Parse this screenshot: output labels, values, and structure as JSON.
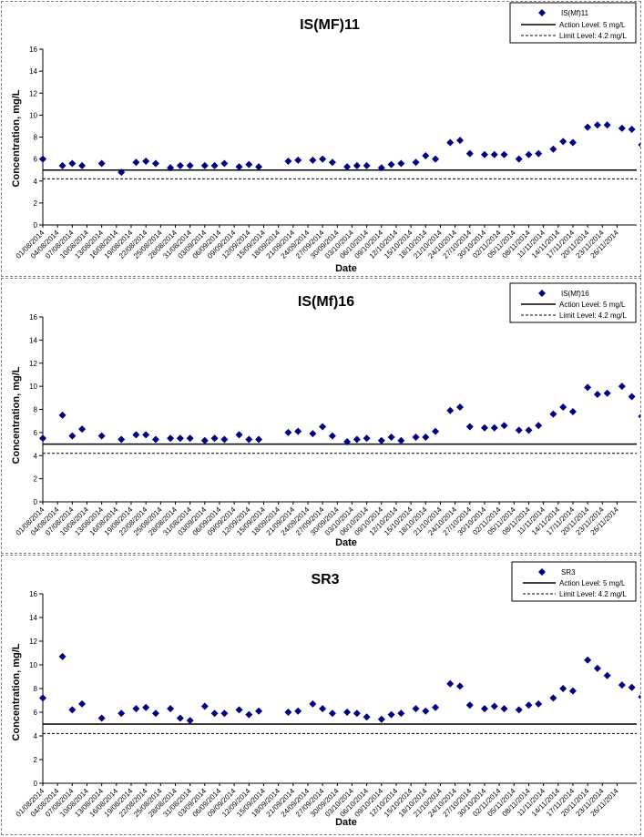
{
  "chart_data": [
    {
      "type": "scatter",
      "title": "IS(MF)11",
      "xlabel": "Date",
      "ylabel": "Concentration, mg/L",
      "ylim": [
        0,
        16
      ],
      "yticks": [
        "0",
        "2",
        "4",
        "6",
        "8",
        "10",
        "12",
        "14",
        "16"
      ],
      "xlim": [
        "01/08/2014",
        "30/11/2014"
      ],
      "xtick_labels": [
        "01/08/2014",
        "04/08/2014",
        "07/08/2014",
        "10/08/2014",
        "13/08/2014",
        "16/08/2014",
        "19/08/2014",
        "22/08/2014",
        "25/08/2014",
        "28/08/2014",
        "31/08/2014",
        "03/09/2014",
        "06/09/2014",
        "09/09/2014",
        "12/09/2014",
        "15/09/2014",
        "18/09/2014",
        "21/09/2014",
        "24/09/2014",
        "27/09/2014",
        "30/09/2014",
        "03/10/2014",
        "06/10/2014",
        "09/10/2014",
        "12/10/2014",
        "15/10/2014",
        "18/10/2014",
        "21/10/2014",
        "24/10/2014",
        "27/10/2014",
        "30/10/2014",
        "02/11/2014",
        "05/11/2014",
        "08/11/2014",
        "11/11/2014",
        "14/11/2014",
        "17/11/2014",
        "20/11/2014",
        "23/11/2014",
        "26/11/2014"
      ],
      "grid": false,
      "legend_position": "top-right",
      "series": [
        {
          "name": "IS(Mf)11",
          "marker": "diamond",
          "color": "#000080",
          "points": [
            [
              "01/08/2014",
              6.0
            ],
            [
              "05/08/2014",
              5.4
            ],
            [
              "07/08/2014",
              5.6
            ],
            [
              "09/08/2014",
              5.4
            ],
            [
              "13/08/2014",
              5.6
            ],
            [
              "17/08/2014",
              4.8
            ],
            [
              "20/08/2014",
              5.7
            ],
            [
              "22/08/2014",
              5.8
            ],
            [
              "24/08/2014",
              5.6
            ],
            [
              "27/08/2014",
              5.2
            ],
            [
              "29/08/2014",
              5.4
            ],
            [
              "31/08/2014",
              5.4
            ],
            [
              "03/09/2014",
              5.4
            ],
            [
              "05/09/2014",
              5.4
            ],
            [
              "07/09/2014",
              5.6
            ],
            [
              "10/09/2014",
              5.3
            ],
            [
              "12/09/2014",
              5.5
            ],
            [
              "14/09/2014",
              5.3
            ],
            [
              "20/09/2014",
              5.8
            ],
            [
              "22/09/2014",
              5.9
            ],
            [
              "25/09/2014",
              5.9
            ],
            [
              "27/09/2014",
              6.0
            ],
            [
              "29/09/2014",
              5.7
            ],
            [
              "02/10/2014",
              5.3
            ],
            [
              "04/10/2014",
              5.4
            ],
            [
              "06/10/2014",
              5.4
            ],
            [
              "09/10/2014",
              5.2
            ],
            [
              "11/10/2014",
              5.5
            ],
            [
              "13/10/2014",
              5.6
            ],
            [
              "16/10/2014",
              5.7
            ],
            [
              "18/10/2014",
              6.3
            ],
            [
              "20/10/2014",
              6.0
            ],
            [
              "23/10/2014",
              7.5
            ],
            [
              "25/10/2014",
              7.7
            ],
            [
              "27/10/2014",
              6.5
            ],
            [
              "30/10/2014",
              6.4
            ],
            [
              "01/11/2014",
              6.4
            ],
            [
              "03/11/2014",
              6.4
            ],
            [
              "06/11/2014",
              6.0
            ],
            [
              "08/11/2014",
              6.4
            ],
            [
              "10/11/2014",
              6.5
            ],
            [
              "13/11/2014",
              6.9
            ],
            [
              "15/11/2014",
              7.6
            ],
            [
              "17/11/2014",
              7.5
            ],
            [
              "20/11/2014",
              8.9
            ],
            [
              "22/11/2014",
              9.1
            ],
            [
              "24/11/2014",
              9.1
            ],
            [
              "27/11/2014",
              8.8
            ],
            [
              "29/11/2014",
              8.7
            ],
            [
              "01/12/2014",
              7.3
            ]
          ]
        },
        {
          "name": "Action Level: 5 mg/L",
          "type": "line",
          "style": "solid",
          "y": 5
        },
        {
          "name": "Limit Level: 4.2 mg/L",
          "type": "line",
          "style": "dashed",
          "y": 4.2
        }
      ]
    },
    {
      "type": "scatter",
      "title": "IS(Mf)16",
      "xlabel": "Date",
      "ylabel": "Concentration, mg/L",
      "ylim": [
        0,
        16
      ],
      "yticks": [
        "0",
        "2",
        "4",
        "6",
        "8",
        "10",
        "12",
        "14",
        "16"
      ],
      "xlim": [
        "01/08/2014",
        "30/11/2014"
      ],
      "xtick_labels": [
        "01/08/2014",
        "04/08/2014",
        "07/08/2014",
        "10/08/2014",
        "13/08/2014",
        "16/08/2014",
        "19/08/2014",
        "22/08/2014",
        "25/08/2014",
        "28/08/2014",
        "31/08/2014",
        "03/09/2014",
        "06/09/2014",
        "09/09/2014",
        "12/09/2014",
        "15/09/2014",
        "18/09/2014",
        "21/09/2014",
        "24/09/2014",
        "27/09/2014",
        "30/09/2014",
        "03/10/2014",
        "06/10/2014",
        "09/10/2014",
        "12/10/2014",
        "15/10/2014",
        "18/10/2014",
        "21/10/2014",
        "24/10/2014",
        "27/10/2014",
        "30/10/2014",
        "02/11/2014",
        "05/11/2014",
        "08/11/2014",
        "11/11/2014",
        "14/11/2014",
        "17/11/2014",
        "20/11/2014",
        "23/11/2014",
        "26/11/2014"
      ],
      "grid": false,
      "legend_position": "top-right",
      "series": [
        {
          "name": "IS(Mf)16",
          "marker": "diamond",
          "color": "#000080",
          "points": [
            [
              "01/08/2014",
              5.5
            ],
            [
              "05/08/2014",
              7.5
            ],
            [
              "07/08/2014",
              5.7
            ],
            [
              "09/08/2014",
              6.3
            ],
            [
              "13/08/2014",
              5.7
            ],
            [
              "17/08/2014",
              5.4
            ],
            [
              "20/08/2014",
              5.8
            ],
            [
              "22/08/2014",
              5.8
            ],
            [
              "24/08/2014",
              5.4
            ],
            [
              "27/08/2014",
              5.5
            ],
            [
              "29/08/2014",
              5.5
            ],
            [
              "31/08/2014",
              5.5
            ],
            [
              "03/09/2014",
              5.3
            ],
            [
              "05/09/2014",
              5.5
            ],
            [
              "07/09/2014",
              5.4
            ],
            [
              "10/09/2014",
              5.8
            ],
            [
              "12/09/2014",
              5.4
            ],
            [
              "14/09/2014",
              5.4
            ],
            [
              "20/09/2014",
              6.0
            ],
            [
              "22/09/2014",
              6.1
            ],
            [
              "25/09/2014",
              5.9
            ],
            [
              "27/09/2014",
              6.5
            ],
            [
              "29/09/2014",
              5.7
            ],
            [
              "02/10/2014",
              5.2
            ],
            [
              "04/10/2014",
              5.4
            ],
            [
              "06/10/2014",
              5.5
            ],
            [
              "09/10/2014",
              5.3
            ],
            [
              "11/10/2014",
              5.6
            ],
            [
              "13/10/2014",
              5.3
            ],
            [
              "16/10/2014",
              5.6
            ],
            [
              "18/10/2014",
              5.6
            ],
            [
              "20/10/2014",
              6.1
            ],
            [
              "23/10/2014",
              7.9
            ],
            [
              "25/10/2014",
              8.2
            ],
            [
              "27/10/2014",
              6.5
            ],
            [
              "30/10/2014",
              6.4
            ],
            [
              "01/11/2014",
              6.4
            ],
            [
              "03/11/2014",
              6.6
            ],
            [
              "06/11/2014",
              6.2
            ],
            [
              "08/11/2014",
              6.2
            ],
            [
              "10/11/2014",
              6.6
            ],
            [
              "13/11/2014",
              7.6
            ],
            [
              "15/11/2014",
              8.2
            ],
            [
              "17/11/2014",
              7.8
            ],
            [
              "20/11/2014",
              9.9
            ],
            [
              "22/11/2014",
              9.3
            ],
            [
              "24/11/2014",
              9.4
            ],
            [
              "27/11/2014",
              10.0
            ],
            [
              "29/11/2014",
              9.1
            ],
            [
              "01/12/2014",
              7.4
            ]
          ]
        },
        {
          "name": "Action Level: 5 mg/L",
          "type": "line",
          "style": "solid",
          "y": 5
        },
        {
          "name": "Limit Level: 4.2 mg/L",
          "type": "line",
          "style": "dashed",
          "y": 4.2
        }
      ]
    },
    {
      "type": "scatter",
      "title": "SR3",
      "xlabel": "Date",
      "ylabel": "Concentration, mg/L",
      "ylim": [
        0,
        16
      ],
      "yticks": [
        "0",
        "2",
        "4",
        "6",
        "8",
        "10",
        "12",
        "14",
        "16"
      ],
      "xlim": [
        "01/08/2014",
        "30/11/2014"
      ],
      "xtick_labels": [
        "01/08/2014",
        "04/08/2014",
        "07/08/2014",
        "10/08/2014",
        "13/08/2014",
        "16/08/2014",
        "19/08/2014",
        "22/08/2014",
        "25/08/2014",
        "28/08/2014",
        "31/08/2014",
        "03/09/2014",
        "06/09/2014",
        "09/09/2014",
        "12/09/2014",
        "15/09/2014",
        "18/09/2014",
        "21/09/2014",
        "24/09/2014",
        "27/09/2014",
        "30/09/2014",
        "03/10/2014",
        "06/10/2014",
        "09/10/2014",
        "12/10/2014",
        "15/10/2014",
        "18/10/2014",
        "21/10/2014",
        "24/10/2014",
        "27/10/2014",
        "30/10/2014",
        "02/11/2014",
        "05/11/2014",
        "08/11/2014",
        "11/11/2014",
        "14/11/2014",
        "17/11/2014",
        "20/11/2014",
        "23/11/2014",
        "26/11/2014"
      ],
      "grid": false,
      "legend_position": "top-right",
      "series": [
        {
          "name": "SR3",
          "marker": "diamond",
          "color": "#000080",
          "points": [
            [
              "01/08/2014",
              7.2
            ],
            [
              "05/08/2014",
              10.7
            ],
            [
              "07/08/2014",
              6.2
            ],
            [
              "09/08/2014",
              6.7
            ],
            [
              "13/08/2014",
              5.5
            ],
            [
              "17/08/2014",
              5.9
            ],
            [
              "20/08/2014",
              6.3
            ],
            [
              "22/08/2014",
              6.4
            ],
            [
              "24/08/2014",
              5.9
            ],
            [
              "27/08/2014",
              6.3
            ],
            [
              "29/08/2014",
              5.5
            ],
            [
              "31/08/2014",
              5.3
            ],
            [
              "03/09/2014",
              6.5
            ],
            [
              "05/09/2014",
              5.9
            ],
            [
              "07/09/2014",
              5.9
            ],
            [
              "10/09/2014",
              6.2
            ],
            [
              "12/09/2014",
              5.8
            ],
            [
              "14/09/2014",
              6.1
            ],
            [
              "20/09/2014",
              6.0
            ],
            [
              "22/09/2014",
              6.1
            ],
            [
              "25/09/2014",
              6.7
            ],
            [
              "27/09/2014",
              6.3
            ],
            [
              "29/09/2014",
              5.9
            ],
            [
              "02/10/2014",
              6.0
            ],
            [
              "04/10/2014",
              5.9
            ],
            [
              "06/10/2014",
              5.6
            ],
            [
              "09/10/2014",
              5.4
            ],
            [
              "11/10/2014",
              5.8
            ],
            [
              "13/10/2014",
              5.9
            ],
            [
              "16/10/2014",
              6.3
            ],
            [
              "18/10/2014",
              6.1
            ],
            [
              "20/10/2014",
              6.4
            ],
            [
              "23/10/2014",
              8.4
            ],
            [
              "25/10/2014",
              8.2
            ],
            [
              "27/10/2014",
              6.6
            ],
            [
              "30/10/2014",
              6.3
            ],
            [
              "01/11/2014",
              6.5
            ],
            [
              "03/11/2014",
              6.3
            ],
            [
              "06/11/2014",
              6.2
            ],
            [
              "08/11/2014",
              6.6
            ],
            [
              "10/11/2014",
              6.7
            ],
            [
              "13/11/2014",
              7.2
            ],
            [
              "15/11/2014",
              8.0
            ],
            [
              "17/11/2014",
              7.8
            ],
            [
              "20/11/2014",
              10.4
            ],
            [
              "22/11/2014",
              9.7
            ],
            [
              "24/11/2014",
              9.1
            ],
            [
              "27/11/2014",
              8.3
            ],
            [
              "29/11/2014",
              8.1
            ],
            [
              "01/12/2014",
              7.3
            ]
          ]
        },
        {
          "name": "Action Level: 5 mg/L",
          "type": "line",
          "style": "solid",
          "y": 5
        },
        {
          "name": "Limit Level: 4.2 mg/L",
          "type": "line",
          "style": "dashed",
          "y": 4.2
        }
      ]
    }
  ]
}
